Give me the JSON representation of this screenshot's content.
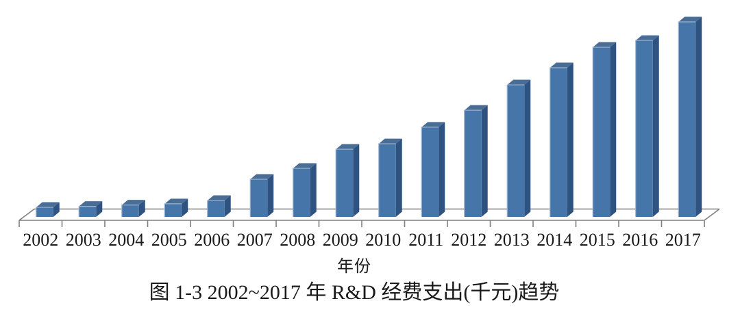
{
  "figure": {
    "xlabel": "年份",
    "caption": "图 1-3  2002~2017 年 R&D 经费支出(千元)趋势"
  },
  "chart_data": {
    "type": "bar",
    "style": "3d-column",
    "title": "",
    "xlabel": "年份",
    "ylabel": "",
    "caption": "图 1-3  2002~2017 年 R&D 经费支出(千元)趋势",
    "y_axis_shown": false,
    "value_note": "no y-axis scale is printed; values are bar heights normalized so 2017 = 100",
    "categories": [
      "2002",
      "2003",
      "2004",
      "2005",
      "2006",
      "2007",
      "2008",
      "2009",
      "2010",
      "2011",
      "2012",
      "2013",
      "2014",
      "2015",
      "2016",
      "2017"
    ],
    "values_relative": [
      4.9,
      5.4,
      6.1,
      6.7,
      8.4,
      19.3,
      24.9,
      34.7,
      37.5,
      46.0,
      54.7,
      67.7,
      76.5,
      87.0,
      90.5,
      100
    ],
    "legend": [],
    "grid": "single back baseline only",
    "colors": {
      "bar_front": "#4575a9",
      "bar_side": "#2f5381",
      "bar_top": "#4a6d96",
      "bar_edge_highlight": "#9db4cf",
      "axis_line": "#7f7f7f",
      "text": "#1a1a1a",
      "background": "#ffffff"
    }
  }
}
